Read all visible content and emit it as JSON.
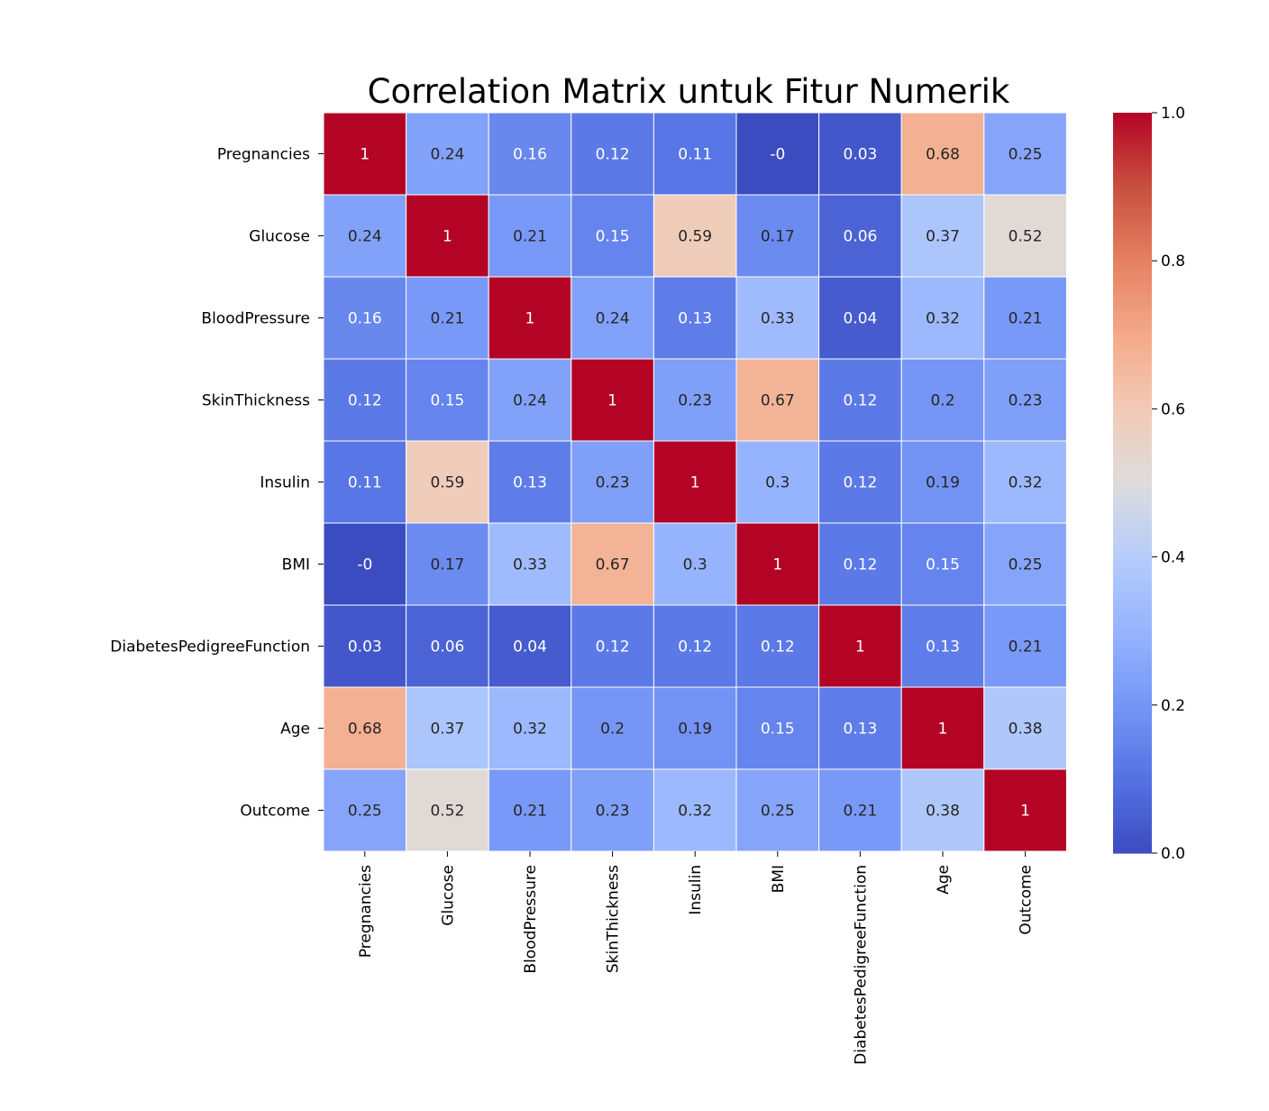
{
  "chart_data": {
    "type": "heatmap",
    "title": "Correlation Matrix untuk Fitur Numerik",
    "xlabel": "",
    "ylabel": "",
    "labels": [
      "Pregnancies",
      "Glucose",
      "BloodPressure",
      "SkinThickness",
      "Insulin",
      "BMI",
      "DiabetesPedigreeFunction",
      "Age",
      "Outcome"
    ],
    "display_values": [
      [
        "1",
        "0.24",
        "0.16",
        "0.12",
        "0.11",
        "-0",
        "0.03",
        "0.68",
        "0.25"
      ],
      [
        "0.24",
        "1",
        "0.21",
        "0.15",
        "0.59",
        "0.17",
        "0.06",
        "0.37",
        "0.52"
      ],
      [
        "0.16",
        "0.21",
        "1",
        "0.24",
        "0.13",
        "0.33",
        "0.04",
        "0.32",
        "0.21"
      ],
      [
        "0.12",
        "0.15",
        "0.24",
        "1",
        "0.23",
        "0.67",
        "0.12",
        "0.2",
        "0.23"
      ],
      [
        "0.11",
        "0.59",
        "0.13",
        "0.23",
        "1",
        "0.3",
        "0.12",
        "0.19",
        "0.32"
      ],
      [
        "-0",
        "0.17",
        "0.33",
        "0.67",
        "0.3",
        "1",
        "0.12",
        "0.15",
        "0.25"
      ],
      [
        "0.03",
        "0.06",
        "0.04",
        "0.12",
        "0.12",
        "0.12",
        "1",
        "0.13",
        "0.21"
      ],
      [
        "0.68",
        "0.37",
        "0.32",
        "0.2",
        "0.19",
        "0.15",
        "0.13",
        "1",
        "0.38"
      ],
      [
        "0.25",
        "0.52",
        "0.21",
        "0.23",
        "0.32",
        "0.25",
        "0.21",
        "0.38",
        "1"
      ]
    ],
    "colormap": "coolwarm",
    "vmin": 0.0,
    "vmax": 1.0,
    "colorbar_ticks": [
      "0.0",
      "0.2",
      "0.4",
      "0.6",
      "0.8",
      "1.0"
    ],
    "annotations": true,
    "legend_placement": "right colorbar"
  }
}
